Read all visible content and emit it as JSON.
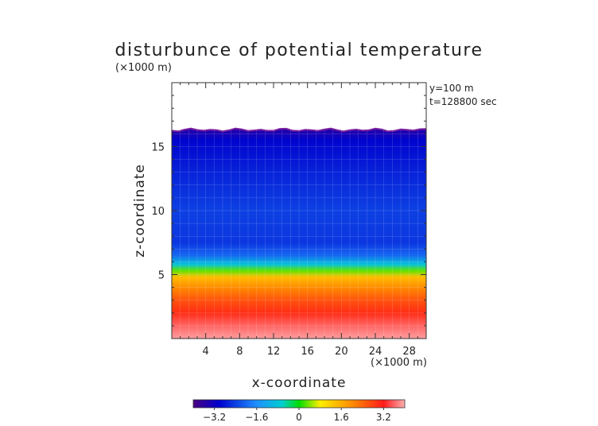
{
  "chart_data": {
    "type": "heatmap",
    "title": "disturbunce of potential temperature",
    "xlabel": "x-coordinate",
    "ylabel": "z-coordinate",
    "x_unit": "(×1000 m)",
    "y_unit": "(×1000 m)",
    "annotations": [
      "y=100 m",
      "t=128800 sec"
    ],
    "xlim": [
      0,
      30
    ],
    "ylim": [
      0,
      20
    ],
    "x_ticks": [
      4,
      8,
      12,
      16,
      20,
      24,
      28
    ],
    "y_ticks": [
      5,
      10,
      15
    ],
    "x_tick_labels": [
      "4",
      "8",
      "12",
      "16",
      "20",
      "24",
      "28"
    ],
    "y_tick_labels": [
      "5",
      "10",
      "15"
    ],
    "data_top_z": 16.3,
    "colorbar": {
      "range": [
        -4,
        4
      ],
      "ticks": [
        -3.2,
        -1.6,
        0,
        1.6,
        3.2
      ],
      "tick_labels": [
        "−3.2",
        "−1.6",
        "0",
        "1.6",
        "3.2"
      ]
    },
    "profile": [
      {
        "z": 0.0,
        "value": 3.9
      },
      {
        "z": 1.0,
        "value": 3.6
      },
      {
        "z": 2.0,
        "value": 3.0
      },
      {
        "z": 3.0,
        "value": 2.6
      },
      {
        "z": 4.0,
        "value": 2.0
      },
      {
        "z": 4.8,
        "value": 1.4
      },
      {
        "z": 5.3,
        "value": 0.3
      },
      {
        "z": 5.8,
        "value": -0.8
      },
      {
        "z": 6.5,
        "value": -2.0
      },
      {
        "z": 7.5,
        "value": -2.5
      },
      {
        "z": 10.0,
        "value": -2.4
      },
      {
        "z": 13.0,
        "value": -2.7
      },
      {
        "z": 15.5,
        "value": -3.0
      },
      {
        "z": 16.3,
        "value": -3.5
      }
    ]
  }
}
